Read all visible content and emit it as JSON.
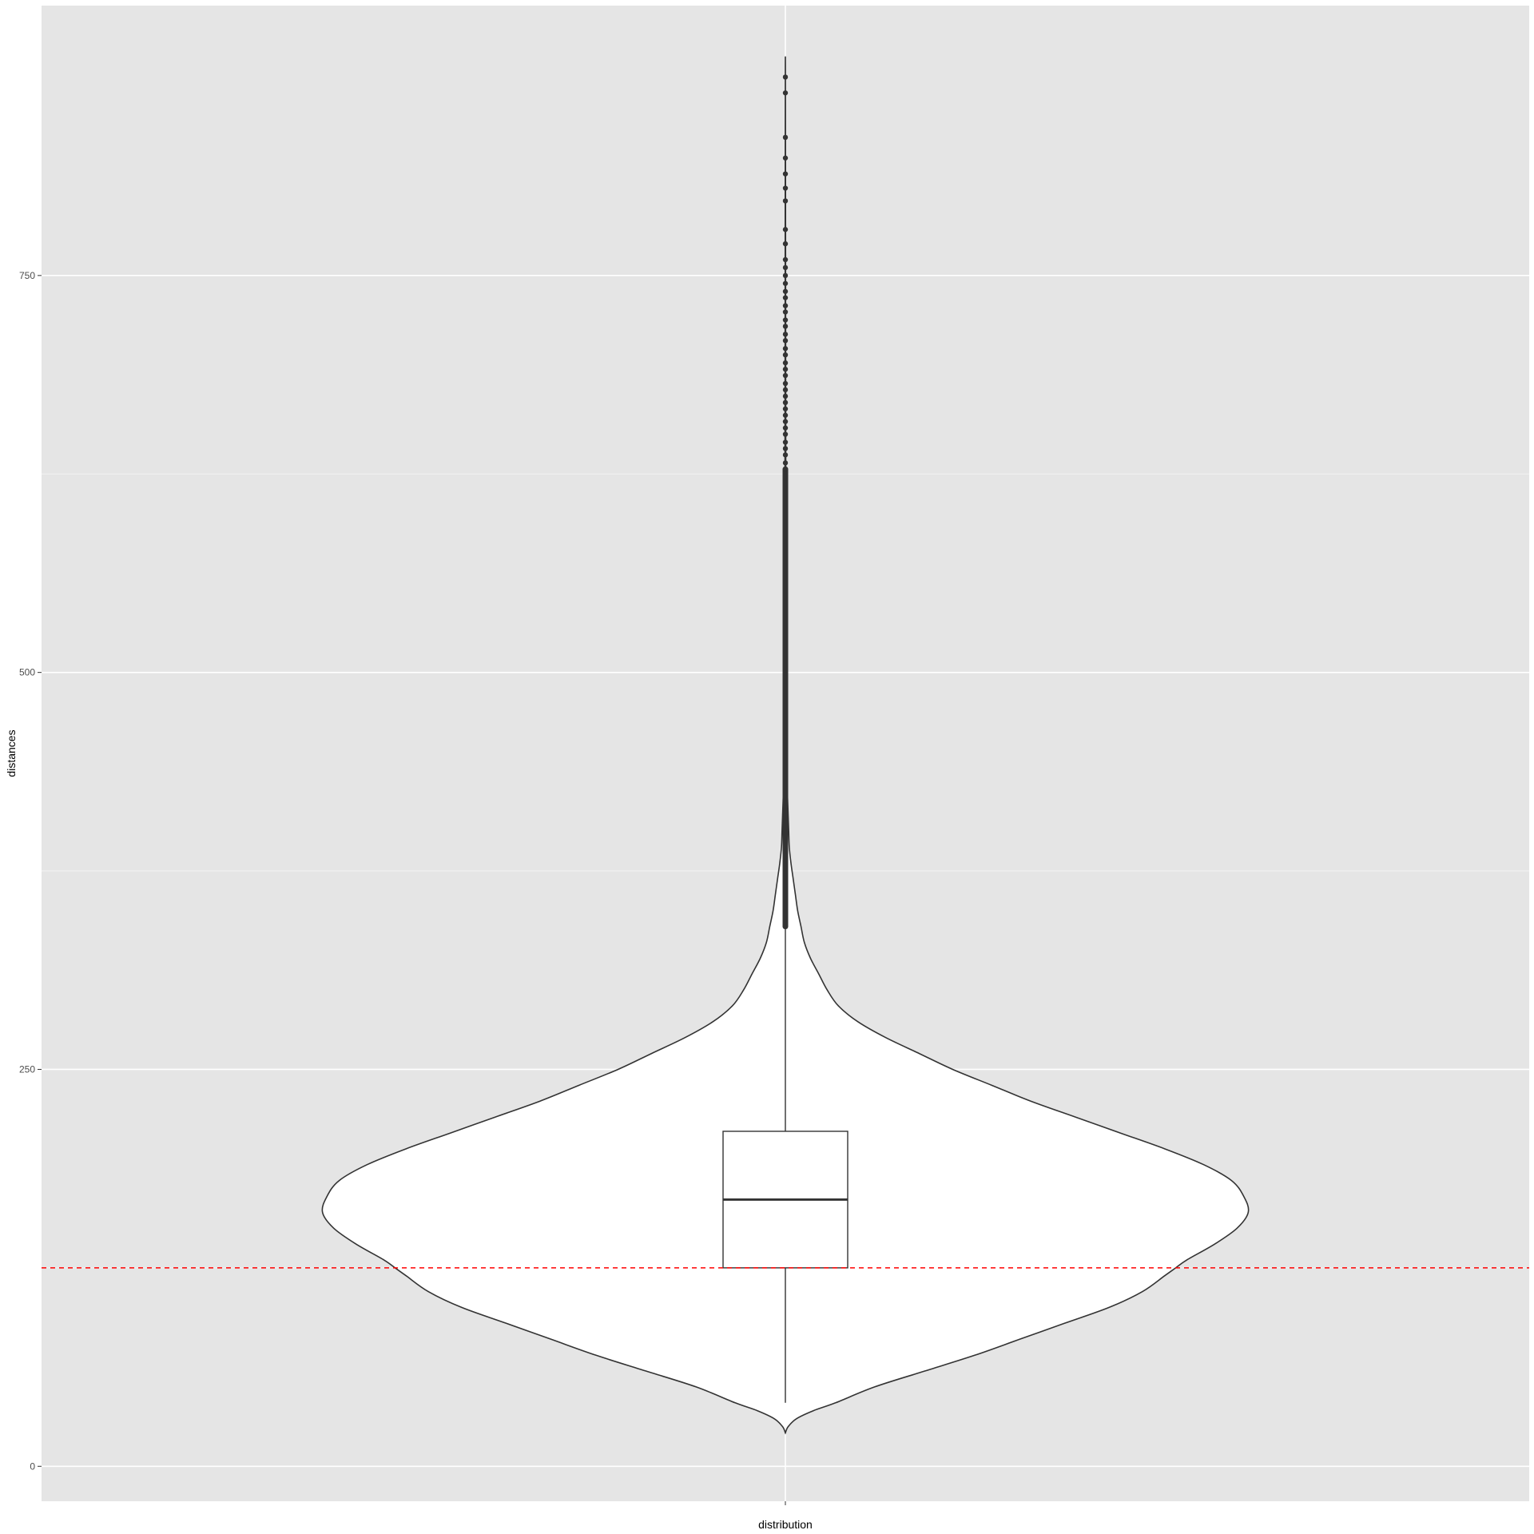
{
  "chart_data": {
    "type": "violin",
    "xlabel": "distribution",
    "ylabel": "distances",
    "categories": [
      ""
    ],
    "ylim": [
      -22,
      920
    ],
    "y_ticks": [
      0,
      250,
      500,
      750
    ],
    "y_tick_labels": [
      "0",
      "250",
      "500",
      "750"
    ],
    "grid": true,
    "colors": {
      "panel_background": "#e5e5e5",
      "grid_major": "#ffffff",
      "grid_minor": "#f2f2f2",
      "violin_fill": "#ffffff",
      "outline": "#333333",
      "reference_line": "#ff0000"
    },
    "reference_line": {
      "y": 125,
      "style": "dashed"
    },
    "boxplot": {
      "min": 40,
      "q1": 125,
      "median": 168,
      "q3": 211,
      "max": 340
    },
    "violin_density": [
      [
        21,
        0.0
      ],
      [
        25,
        0.005
      ],
      [
        30,
        0.02
      ],
      [
        35,
        0.05
      ],
      [
        40,
        0.09
      ],
      [
        50,
        0.16
      ],
      [
        60,
        0.25
      ],
      [
        70,
        0.34
      ],
      [
        80,
        0.42
      ],
      [
        90,
        0.5
      ],
      [
        100,
        0.58
      ],
      [
        110,
        0.64
      ],
      [
        120,
        0.68
      ],
      [
        125,
        0.7
      ],
      [
        130,
        0.72
      ],
      [
        140,
        0.77
      ],
      [
        150,
        0.81
      ],
      [
        160,
        0.83
      ],
      [
        170,
        0.822
      ],
      [
        180,
        0.8
      ],
      [
        190,
        0.75
      ],
      [
        200,
        0.68
      ],
      [
        210,
        0.6
      ],
      [
        220,
        0.52
      ],
      [
        230,
        0.44
      ],
      [
        240,
        0.37
      ],
      [
        250,
        0.3
      ],
      [
        260,
        0.24
      ],
      [
        270,
        0.18
      ],
      [
        280,
        0.13
      ],
      [
        290,
        0.095
      ],
      [
        300,
        0.075
      ],
      [
        310,
        0.06
      ],
      [
        320,
        0.045
      ],
      [
        330,
        0.034
      ],
      [
        340,
        0.028
      ],
      [
        350,
        0.022
      ],
      [
        360,
        0.018
      ],
      [
        370,
        0.014
      ],
      [
        380,
        0.01
      ],
      [
        390,
        0.007
      ],
      [
        400,
        0.006
      ],
      [
        410,
        0.005
      ],
      [
        420,
        0.004
      ],
      [
        430,
        0.003
      ],
      [
        440,
        0.002
      ],
      [
        450,
        0.0016
      ],
      [
        500,
        0.0012
      ],
      [
        600,
        0.0008
      ],
      [
        700,
        0.0005
      ],
      [
        800,
        0.0003
      ],
      [
        880,
        0.0001
      ],
      [
        885,
        0.0
      ]
    ],
    "outliers_dense_range": [
      340,
      628
    ],
    "outliers": [
      628,
      632,
      637,
      641,
      645,
      650,
      654,
      658,
      662,
      666,
      670,
      674,
      678,
      682,
      687,
      691,
      695,
      700,
      704,
      709,
      713,
      718,
      722,
      727,
      731,
      736,
      740,
      745,
      750,
      755,
      760,
      770,
      779,
      797,
      805,
      814,
      824,
      837,
      865,
      875
    ]
  }
}
